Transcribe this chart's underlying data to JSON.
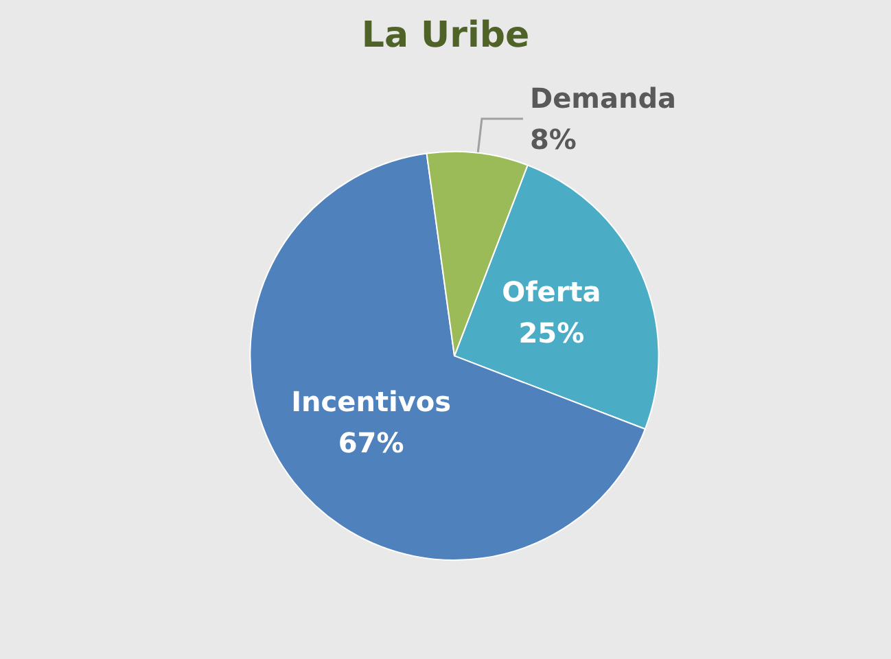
{
  "chart_data": {
    "type": "pie",
    "title": "La Uribe",
    "categories": [
      "Oferta",
      "Incentivos",
      "Demanda"
    ],
    "values": [
      25,
      67,
      8
    ],
    "colors": [
      "#4bacc6",
      "#4f81bd",
      "#9bbb59"
    ],
    "value_labels": [
      "25%",
      "67%",
      "8%"
    ]
  }
}
